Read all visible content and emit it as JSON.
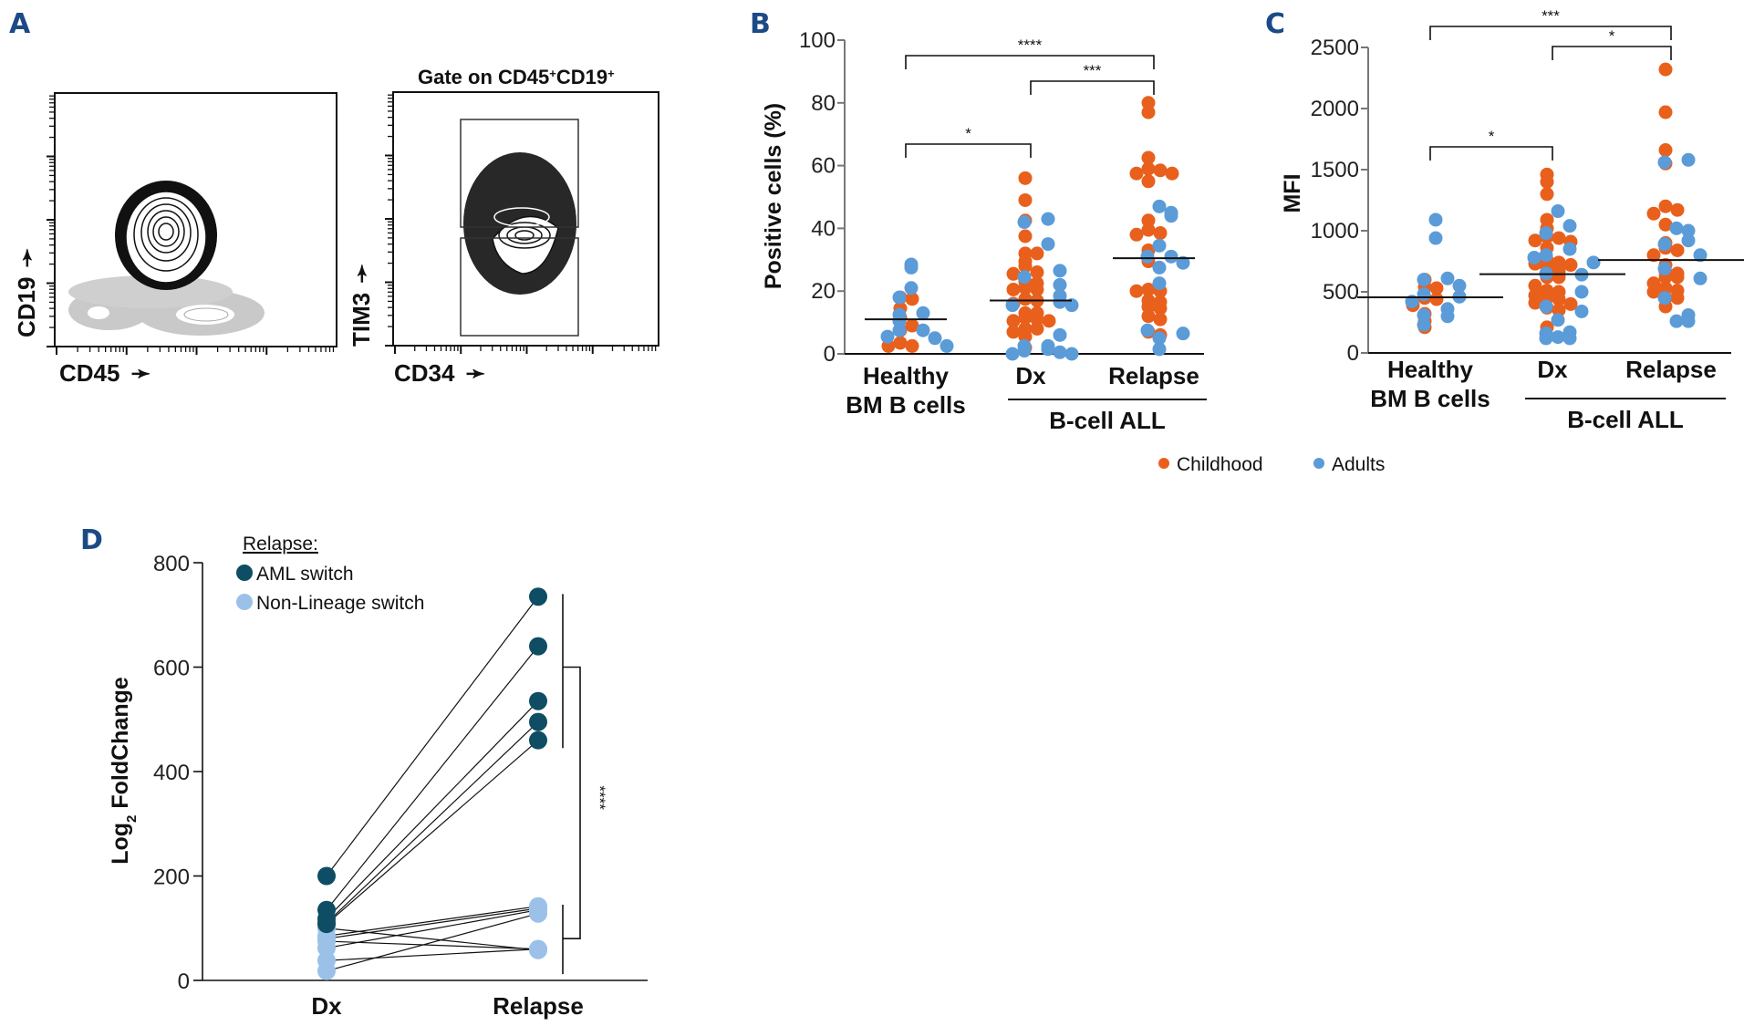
{
  "figure": {
    "panels": [
      "A",
      "B",
      "C",
      "D"
    ]
  },
  "panel_a": {
    "letter": "A",
    "plot1": {
      "xlabel": "CD45",
      "ylabel": "CD19"
    },
    "plot2": {
      "title": "Gate on CD45",
      "title_sup1": "+",
      "title_mid": "CD19",
      "title_sup2": "+",
      "xlabel": "CD34",
      "ylabel": "TIM3"
    }
  },
  "legend_bc": {
    "items": [
      {
        "label": "Childhood",
        "color": "#e8601c"
      },
      {
        "label": "Adults",
        "color": "#5b9bd8"
      }
    ]
  },
  "chart_data": [
    {
      "id": "B",
      "type": "scatter",
      "letter": "B",
      "ylabel": "Positive cells (%)",
      "ylim": [
        0,
        100
      ],
      "yticks": [
        0,
        20,
        40,
        60,
        80,
        100
      ],
      "categories": [
        "Healthy\nBM B cells",
        "Dx",
        "Relapse"
      ],
      "category_lines": [
        [
          "Healthy",
          "BM B cells"
        ],
        [
          "Dx"
        ],
        [
          "Relapse"
        ]
      ],
      "group_label": "B-cell ALL",
      "medians": [
        11,
        17,
        30.5
      ],
      "significance": [
        {
          "from": 0,
          "to": 2,
          "label": "****"
        },
        {
          "from": 1,
          "to": 2,
          "label": "***"
        },
        {
          "from": 0,
          "to": 1,
          "label": "*"
        }
      ],
      "series": [
        {
          "name": "Childhood",
          "color": "#e8601c",
          "points": [
            [
              0,
              18
            ],
            [
              0,
              17.5
            ],
            [
              0,
              14.5
            ],
            [
              0,
              11.5
            ],
            [
              0,
              9
            ],
            [
              0,
              7.5
            ],
            [
              0,
              3.5
            ],
            [
              0,
              2.5
            ],
            [
              0,
              2.5
            ],
            [
              1,
              56
            ],
            [
              1,
              49
            ],
            [
              1,
              42.5
            ],
            [
              1,
              37.5
            ],
            [
              1,
              32
            ],
            [
              1,
              32
            ],
            [
              1,
              29.5
            ],
            [
              1,
              28
            ],
            [
              1,
              26
            ],
            [
              1,
              25.5
            ],
            [
              1,
              23
            ],
            [
              1,
              22.5
            ],
            [
              1,
              21
            ],
            [
              1,
              20.5
            ],
            [
              1,
              20.5
            ],
            [
              1,
              17.5
            ],
            [
              1,
              17
            ],
            [
              1,
              16
            ],
            [
              1,
              13
            ],
            [
              1,
              13
            ],
            [
              1,
              11.5
            ],
            [
              1,
              11
            ],
            [
              1,
              10.5
            ],
            [
              1,
              10.5
            ],
            [
              1,
              8
            ],
            [
              1,
              8
            ],
            [
              1,
              7
            ],
            [
              1,
              5.5
            ],
            [
              1,
              2
            ],
            [
              2,
              80
            ],
            [
              2,
              77
            ],
            [
              2,
              62.5
            ],
            [
              2,
              59
            ],
            [
              2,
              58.5
            ],
            [
              2,
              57.5
            ],
            [
              2,
              57.5
            ],
            [
              2,
              55
            ],
            [
              2,
              42.5
            ],
            [
              2,
              39.5
            ],
            [
              2,
              38.5
            ],
            [
              2,
              38
            ],
            [
              2,
              33
            ],
            [
              2,
              29.5
            ],
            [
              2,
              20.5
            ],
            [
              2,
              20
            ],
            [
              2,
              20
            ],
            [
              2,
              17
            ],
            [
              2,
              16.5
            ],
            [
              2,
              15
            ],
            [
              2,
              14.5
            ],
            [
              2,
              12
            ],
            [
              2,
              11
            ],
            [
              2,
              7
            ],
            [
              2,
              6
            ]
          ]
        },
        {
          "name": "Adults",
          "color": "#5b9bd8",
          "points": [
            [
              0,
              28.5
            ],
            [
              0,
              27.5
            ],
            [
              0,
              21
            ],
            [
              0,
              18
            ],
            [
              0,
              13
            ],
            [
              0,
              12.5
            ],
            [
              0,
              10.5
            ],
            [
              0,
              7.5
            ],
            [
              0,
              7.5
            ],
            [
              0,
              5
            ],
            [
              0,
              5.5
            ],
            [
              0,
              2.5
            ],
            [
              1,
              43
            ],
            [
              1,
              42
            ],
            [
              1,
              35
            ],
            [
              1,
              26.5
            ],
            [
              1,
              24.5
            ],
            [
              1,
              22
            ],
            [
              1,
              18.5
            ],
            [
              1,
              16.5
            ],
            [
              1,
              15.5
            ],
            [
              1,
              15.5
            ],
            [
              1,
              6
            ],
            [
              1,
              2.5
            ],
            [
              1,
              2.5
            ],
            [
              1,
              1.5
            ],
            [
              1,
              1
            ],
            [
              1,
              0.5
            ],
            [
              1,
              0
            ],
            [
              1,
              0
            ],
            [
              2,
              47
            ],
            [
              2,
              45
            ],
            [
              2,
              44
            ],
            [
              2,
              34.5
            ],
            [
              2,
              31
            ],
            [
              2,
              31
            ],
            [
              2,
              29
            ],
            [
              2,
              27.5
            ],
            [
              2,
              22.5
            ],
            [
              2,
              7.5
            ],
            [
              2,
              6.5
            ],
            [
              2,
              5
            ],
            [
              2,
              1.5
            ]
          ]
        }
      ]
    },
    {
      "id": "C",
      "type": "scatter",
      "letter": "C",
      "ylabel": "MFI",
      "ylim": [
        0,
        2500
      ],
      "yticks": [
        0,
        500,
        1000,
        1500,
        2000,
        2500
      ],
      "categories": [
        "Healthy\nBM B cells",
        "Dx",
        "Relapse"
      ],
      "category_lines": [
        [
          "Healthy",
          "BM B cells"
        ],
        [
          "Dx"
        ],
        [
          "Relapse"
        ]
      ],
      "group_label": "B-cell ALL",
      "medians": [
        455,
        645,
        760
      ],
      "significance": [
        {
          "from": 0,
          "to": 2,
          "label": "***"
        },
        {
          "from": 1,
          "to": 2,
          "label": "*"
        },
        {
          "from": 0,
          "to": 1,
          "label": "*"
        }
      ],
      "series": [
        {
          "name": "Childhood",
          "color": "#e8601c",
          "points": [
            [
              0,
              600
            ],
            [
              0,
              540
            ],
            [
              0,
              530
            ],
            [
              0,
              450
            ],
            [
              0,
              440
            ],
            [
              0,
              390
            ],
            [
              0,
              320
            ],
            [
              0,
              260
            ],
            [
              0,
              210
            ],
            [
              1,
              1460
            ],
            [
              1,
              1400
            ],
            [
              1,
              1300
            ],
            [
              1,
              1090
            ],
            [
              1,
              1020
            ],
            [
              1,
              950
            ],
            [
              1,
              940
            ],
            [
              1,
              920
            ],
            [
              1,
              910
            ],
            [
              1,
              860
            ],
            [
              1,
              760
            ],
            [
              1,
              740
            ],
            [
              1,
              730
            ],
            [
              1,
              720
            ],
            [
              1,
              700
            ],
            [
              1,
              670
            ],
            [
              1,
              620
            ],
            [
              1,
              620
            ],
            [
              1,
              550
            ],
            [
              1,
              510
            ],
            [
              1,
              500
            ],
            [
              1,
              470
            ],
            [
              1,
              450
            ],
            [
              1,
              440
            ],
            [
              1,
              410
            ],
            [
              1,
              400
            ],
            [
              1,
              370
            ],
            [
              1,
              350
            ],
            [
              1,
              210
            ],
            [
              2,
              2320
            ],
            [
              2,
              1970
            ],
            [
              2,
              1660
            ],
            [
              2,
              1550
            ],
            [
              2,
              1200
            ],
            [
              2,
              1170
            ],
            [
              2,
              1140
            ],
            [
              2,
              1050
            ],
            [
              2,
              900
            ],
            [
              2,
              860
            ],
            [
              2,
              840
            ],
            [
              2,
              800
            ],
            [
              2,
              720
            ],
            [
              2,
              660
            ],
            [
              2,
              650
            ],
            [
              2,
              620
            ],
            [
              2,
              620
            ],
            [
              2,
              570
            ],
            [
              2,
              530
            ],
            [
              2,
              510
            ],
            [
              2,
              500
            ],
            [
              2,
              450
            ],
            [
              2,
              450
            ],
            [
              2,
              380
            ]
          ]
        },
        {
          "name": "Adults",
          "color": "#5b9bd8",
          "points": [
            [
              0,
              1090
            ],
            [
              0,
              940
            ],
            [
              0,
              610
            ],
            [
              0,
              600
            ],
            [
              0,
              550
            ],
            [
              0,
              480
            ],
            [
              0,
              460
            ],
            [
              0,
              420
            ],
            [
              0,
              360
            ],
            [
              0,
              310
            ],
            [
              0,
              300
            ],
            [
              0,
              230
            ],
            [
              1,
              1160
            ],
            [
              1,
              1040
            ],
            [
              1,
              980
            ],
            [
              1,
              850
            ],
            [
              1,
              800
            ],
            [
              1,
              780
            ],
            [
              1,
              740
            ],
            [
              1,
              650
            ],
            [
              1,
              640
            ],
            [
              1,
              500
            ],
            [
              1,
              380
            ],
            [
              1,
              340
            ],
            [
              1,
              270
            ],
            [
              1,
              170
            ],
            [
              1,
              160
            ],
            [
              1,
              130
            ],
            [
              1,
              120
            ],
            [
              1,
              120
            ],
            [
              2,
              1580
            ],
            [
              2,
              1560
            ],
            [
              2,
              1020
            ],
            [
              2,
              1000
            ],
            [
              2,
              920
            ],
            [
              2,
              890
            ],
            [
              2,
              800
            ],
            [
              2,
              690
            ],
            [
              2,
              610
            ],
            [
              2,
              450
            ],
            [
              2,
              310
            ],
            [
              2,
              260
            ],
            [
              2,
              260
            ]
          ]
        }
      ]
    },
    {
      "id": "D",
      "type": "line",
      "letter": "D",
      "ylabel_main": "Log",
      "ylabel_sub": "2",
      "ylabel_rest": " FoldChange",
      "ylim": [
        0,
        800
      ],
      "yticks": [
        0,
        200,
        400,
        600,
        800
      ],
      "categories": [
        "Dx",
        "Relapse"
      ],
      "legend_title": "Relapse:",
      "significance_label": "****",
      "series": [
        {
          "name": "AML switch",
          "color": "#0e4d63",
          "pairs": [
            [
              200,
              735
            ],
            [
              135,
              640
            ],
            [
              118,
              535
            ],
            [
              110,
              495
            ],
            [
              108,
              460
            ]
          ]
        },
        {
          "name": "Non-Lineage switch",
          "color": "#9cc1e8",
          "pairs": [
            [
              100,
              58
            ],
            [
              85,
              142
            ],
            [
              80,
              138
            ],
            [
              75,
              60
            ],
            [
              62,
              135
            ],
            [
              38,
              60
            ],
            [
              18,
              128
            ]
          ]
        }
      ]
    }
  ]
}
